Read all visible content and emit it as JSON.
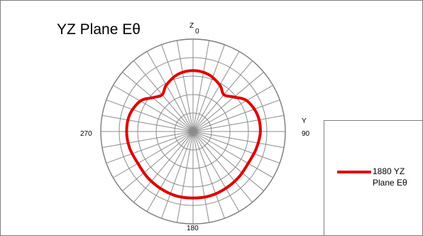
{
  "chart_data": {
    "type": "polar-line",
    "title": "YZ Plane Eθ",
    "axis_letters": {
      "top": "Z",
      "right": "Y"
    },
    "angle_labels": {
      "top": "0",
      "right": "90",
      "bottom": "180",
      "left": "270"
    },
    "grid": true,
    "radial_rings": 5,
    "spoke_step_deg": 10,
    "rlim": [
      0,
      1
    ],
    "legend_position": "right",
    "series": [
      {
        "name": "1880 YZ Plane Eθ",
        "color": "#e00000",
        "theta_deg": [
          0,
          15,
          30,
          40,
          50,
          60,
          75,
          90,
          105,
          120,
          135,
          150,
          165,
          180,
          195,
          210,
          225,
          240,
          255,
          270,
          285,
          300,
          310,
          320,
          330,
          345
        ],
        "r": [
          0.66,
          0.64,
          0.58,
          0.52,
          0.58,
          0.67,
          0.72,
          0.73,
          0.71,
          0.69,
          0.7,
          0.71,
          0.72,
          0.72,
          0.72,
          0.71,
          0.7,
          0.69,
          0.71,
          0.72,
          0.71,
          0.66,
          0.57,
          0.52,
          0.58,
          0.64
        ]
      }
    ]
  }
}
